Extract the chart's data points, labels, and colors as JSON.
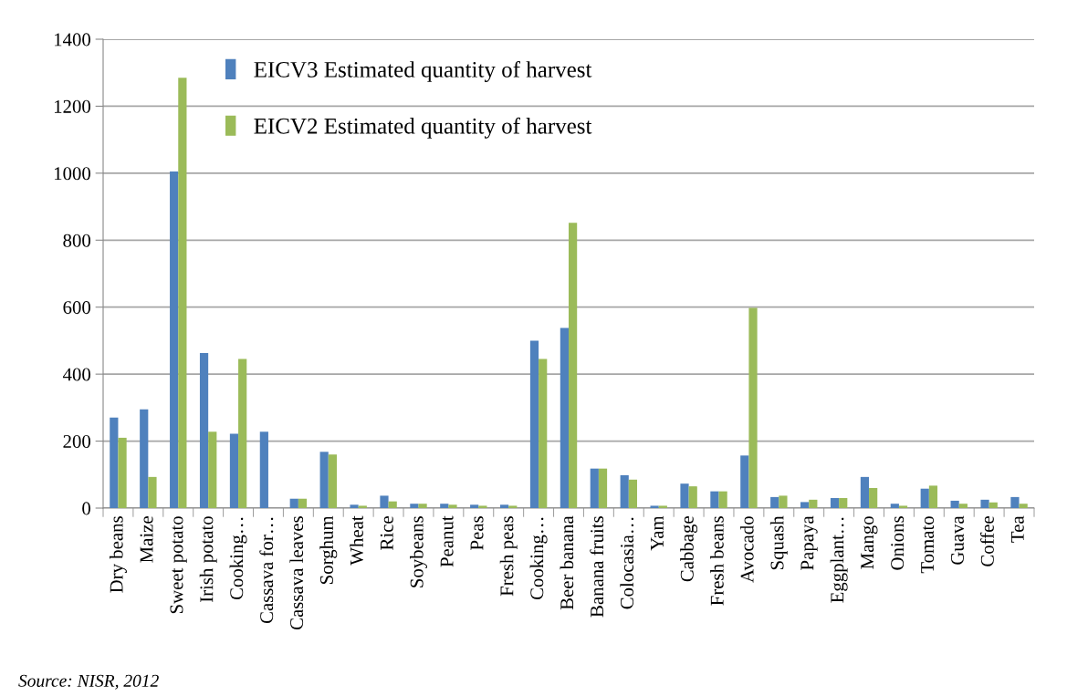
{
  "chart_data": {
    "type": "bar",
    "categories": [
      "Dry beans",
      "Maize",
      "Sweet potato",
      "Irish potato",
      "Cooking…",
      "Cassava for…",
      "Cassava leaves",
      "Sorghum",
      "Wheat",
      "Rice",
      "Soybeans",
      "Peanut",
      "Peas",
      "Fresh peas",
      "Cooking…",
      "Beer banana",
      "Banana fruits",
      "Colocasia…",
      "Yam",
      "Cabbage",
      "Fresh beans",
      "Avocado",
      "Squash",
      "Papaya",
      "Eggplant…",
      "Mango",
      "Onions",
      "Tomato",
      "Guava",
      "Coffee",
      "Tea"
    ],
    "series": [
      {
        "name": "EICV3 Estimated quantity of harvest",
        "color": "#4f81bd",
        "values": [
          270,
          295,
          1005,
          463,
          222,
          228,
          28,
          168,
          10,
          37,
          13,
          13,
          10,
          10,
          500,
          538,
          118,
          98,
          7,
          73,
          50,
          157,
          33,
          18,
          30,
          93,
          13,
          58,
          22,
          25,
          33
        ]
      },
      {
        "name": "EICV2 Estimated quantity of harvest",
        "color": "#9bbb59",
        "values": [
          210,
          93,
          1285,
          228,
          445,
          null,
          28,
          160,
          7,
          20,
          13,
          10,
          7,
          7,
          445,
          852,
          118,
          85,
          7,
          65,
          50,
          598,
          37,
          25,
          30,
          60,
          7,
          67,
          13,
          17,
          13
        ]
      }
    ],
    "ylim": [
      0,
      1400
    ],
    "yticks": [
      0,
      200,
      400,
      600,
      800,
      1000,
      1200,
      1400
    ],
    "grid": "y",
    "legend": "top left",
    "annotations": [
      "Source: NISR, 2012"
    ]
  }
}
